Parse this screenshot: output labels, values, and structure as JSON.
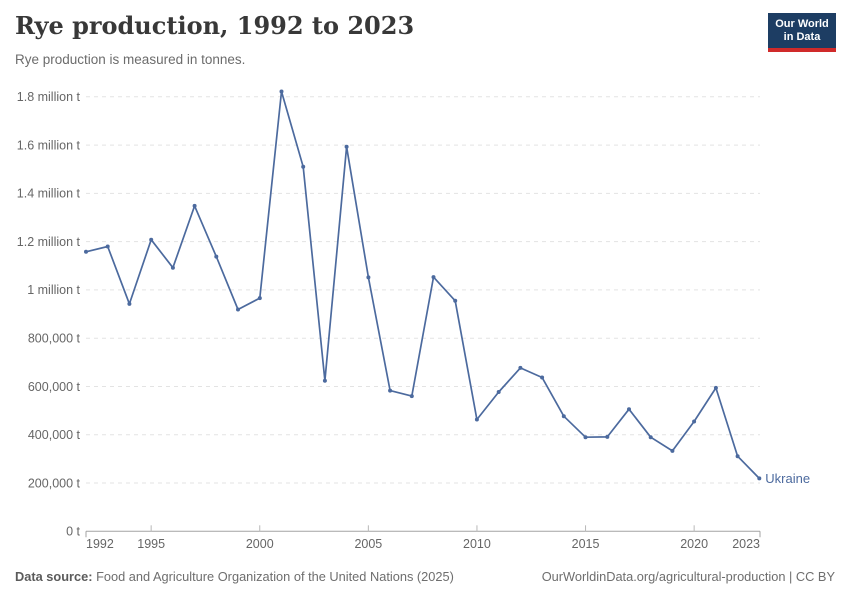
{
  "header": {
    "title": "Rye production, 1992 to 2023",
    "subtitle": "Rye production is measured in tonnes.",
    "logo": {
      "line1": "Our World",
      "line2": "in Data"
    }
  },
  "footer": {
    "source_label": "Data source:",
    "source_text": " Food and Agriculture Organization of the United Nations (2025)",
    "credit": "OurWorldinData.org/agricultural-production | CC BY"
  },
  "colors": {
    "series": "#4c6a9e",
    "grid": "#e3e3e3",
    "axis": "#a3a3a3",
    "tick": "#b8b8b8",
    "tick_label": "#666666",
    "logo_bg": "#1d3d63",
    "logo_accent": "#d02a2a"
  },
  "chart_data": {
    "type": "line",
    "title": "Rye production, 1992 to 2023",
    "unit": "tonnes",
    "xlabel": "",
    "ylabel": "",
    "xlim": [
      1992,
      2023
    ],
    "ylim": [
      0,
      1800000
    ],
    "grid": "horizontal-dashed",
    "legend_position": "end-of-line-label",
    "x_ticks": [
      1992,
      1995,
      2000,
      2005,
      2010,
      2015,
      2020,
      2023
    ],
    "y_ticks": [
      {
        "value": 0,
        "label": "0 t"
      },
      {
        "value": 200000,
        "label": "200,000 t"
      },
      {
        "value": 400000,
        "label": "400,000 t"
      },
      {
        "value": 600000,
        "label": "600,000 t"
      },
      {
        "value": 800000,
        "label": "800,000 t"
      },
      {
        "value": 1000000,
        "label": "1 million t"
      },
      {
        "value": 1200000,
        "label": "1.2 million t"
      },
      {
        "value": 1400000,
        "label": "1.4 million t"
      },
      {
        "value": 1600000,
        "label": "1.6 million t"
      },
      {
        "value": 1800000,
        "label": "1.8 million t"
      }
    ],
    "series": [
      {
        "name": "Ukraine",
        "color": "#4c6a9e",
        "x": [
          1992,
          1993,
          1994,
          1995,
          1996,
          1997,
          1998,
          1999,
          2000,
          2001,
          2002,
          2003,
          2004,
          2005,
          2006,
          2007,
          2008,
          2009,
          2010,
          2011,
          2012,
          2013,
          2014,
          2015,
          2016,
          2017,
          2018,
          2019,
          2020,
          2021,
          2022,
          2023
        ],
        "values": [
          1158000,
          1180000,
          942000,
          1208000,
          1092000,
          1348000,
          1138000,
          919000,
          966000,
          1822000,
          1510000,
          624000,
          1593000,
          1052000,
          583000,
          560000,
          1053000,
          955000,
          463000,
          577000,
          677000,
          637000,
          477000,
          390000,
          391000,
          506000,
          390000,
          333000,
          455000,
          594000,
          311000,
          219000
        ]
      }
    ]
  }
}
